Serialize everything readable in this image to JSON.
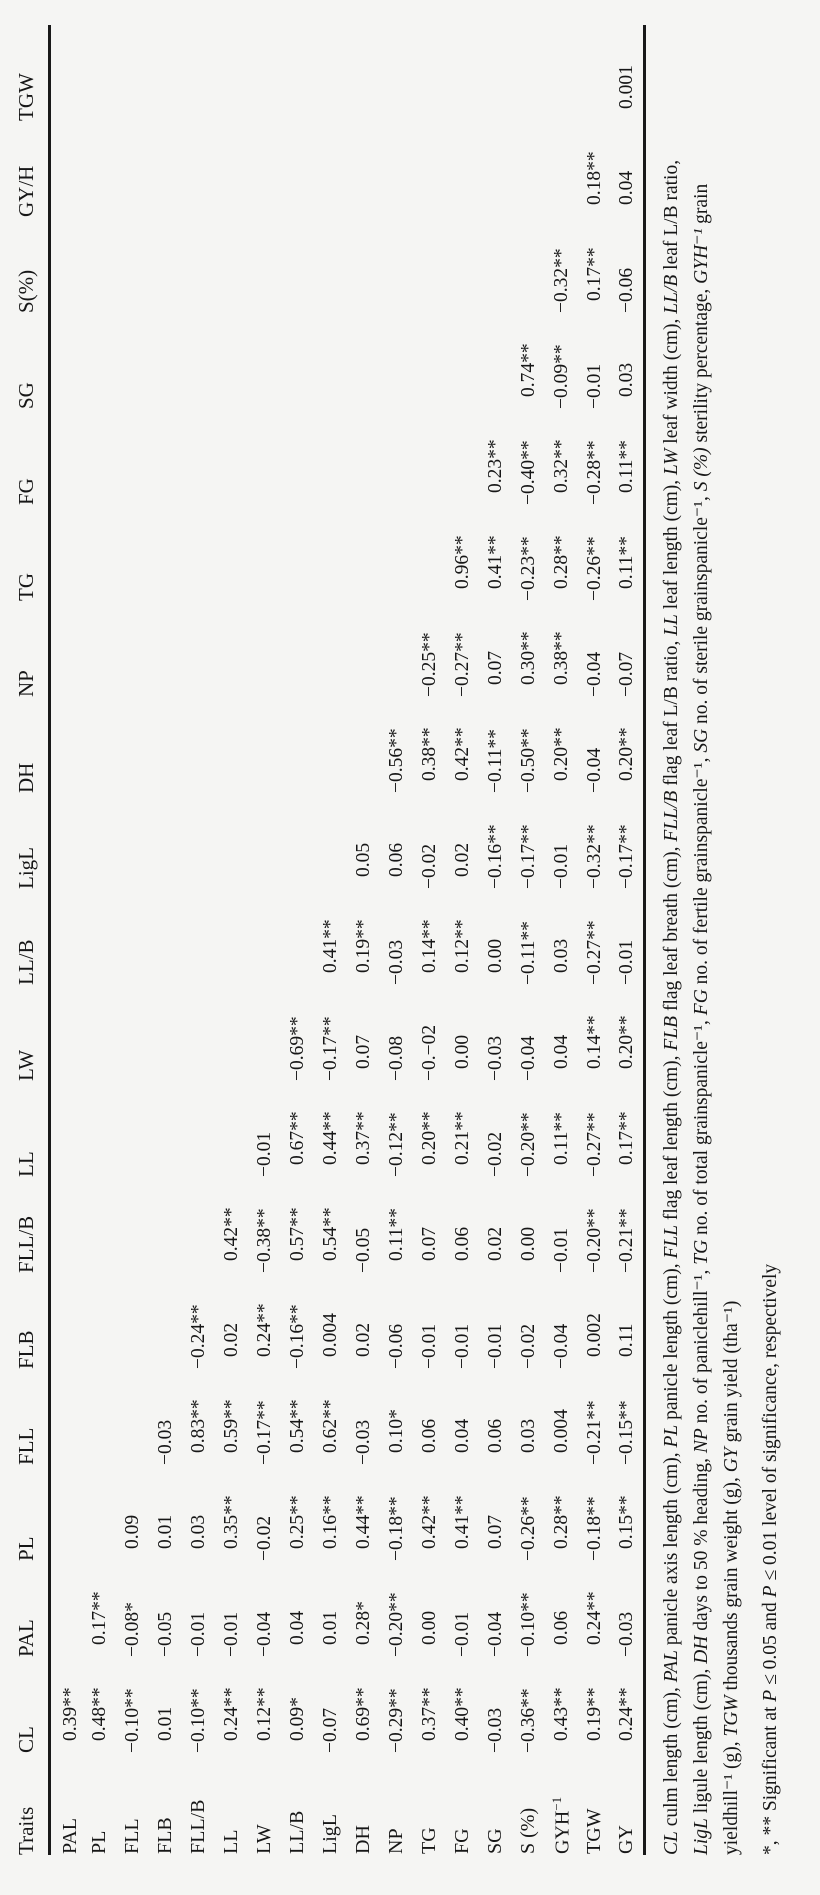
{
  "table": {
    "header": [
      "Traits",
      "CL",
      "PAL",
      "PL",
      "FLL",
      "FLB",
      "FLL/B",
      "LL",
      "LW",
      "LL/B",
      "LigL",
      "DH",
      "NP",
      "TG",
      "FG",
      "SG",
      "S(%)",
      "GY/H",
      "TGW"
    ],
    "rows": [
      {
        "label": "PAL",
        "values": [
          "0.39**"
        ]
      },
      {
        "label": "PL",
        "values": [
          "0.48**",
          "0.17**"
        ]
      },
      {
        "label": "FLL",
        "values": [
          "−0.10**",
          "−0.08*",
          "0.09"
        ]
      },
      {
        "label": "FLB",
        "values": [
          "0.01",
          "−0.05",
          "0.01",
          "−0.03"
        ]
      },
      {
        "label": "FLL/B",
        "values": [
          "−0.10**",
          "−0.01",
          "0.03",
          "0.83**",
          "−0.24**"
        ]
      },
      {
        "label": "LL",
        "values": [
          "0.24**",
          "−0.01",
          "0.35**",
          "0.59**",
          "0.02",
          "0.42**"
        ]
      },
      {
        "label": "LW",
        "values": [
          "0.12**",
          "−0.04",
          "−0.02",
          "−0.17**",
          "0.24**",
          "−0.38**",
          "−0.01"
        ]
      },
      {
        "label": "LL/B",
        "values": [
          "0.09*",
          "0.04",
          "0.25**",
          "0.54**",
          "−0.16**",
          "0.57**",
          "0.67**",
          "−0.69**"
        ]
      },
      {
        "label": "LigL",
        "values": [
          "−0.07",
          "0.01",
          "0.16**",
          "0.62**",
          "0.004",
          "0.54**",
          "0.44**",
          "−0.17**",
          "0.41**"
        ]
      },
      {
        "label": "DH",
        "values": [
          "0.69**",
          "0.28*",
          "0.44**",
          "−0.03",
          "0.02",
          "−0.05",
          "0.37**",
          "0.07",
          "0.19**",
          "0.05"
        ]
      },
      {
        "label": "NP",
        "values": [
          "−0.29**",
          "−0.20**",
          "−0.18**",
          "0.10*",
          "−0.06",
          "0.11**",
          "−0.12**",
          "−0.08",
          "−0.03",
          "0.06",
          "−0.56**"
        ]
      },
      {
        "label": "TG",
        "values": [
          "0.37**",
          "0.00",
          "0.42**",
          "0.06",
          "−0.01",
          "0.07",
          "0.20**",
          "−0.−02",
          "0.14**",
          "−0.02",
          "0.38**",
          "−0.25**"
        ]
      },
      {
        "label": "FG",
        "values": [
          "0.40**",
          "−0.01",
          "0.41**",
          "0.04",
          "−0.01",
          "0.06",
          "0.21**",
          "0.00",
          "0.12**",
          "0.02",
          "0.42**",
          "−0.27**",
          "0.96**"
        ]
      },
      {
        "label": "SG",
        "values": [
          "−0.03",
          "−0.04",
          "0.07",
          "0.06",
          "−0.01",
          "0.02",
          "−0.02",
          "−0.03",
          "0.00",
          "−0.16**",
          "−0.11**",
          "0.07",
          "0.41**",
          "0.23**"
        ]
      },
      {
        "label": "S (%)",
        "values": [
          "−0.36**",
          "−0.10**",
          "−0.26**",
          "0.03",
          "−0.02",
          "0.00",
          "−0.20**",
          "−0.04",
          "−0.11**",
          "−0.17**",
          "−0.50**",
          "0.30**",
          "−0.23**",
          "−0.40**",
          "0.74**"
        ]
      },
      {
        "label": "GYH",
        "label_sup": "−1",
        "values": [
          "0.43**",
          "0.06",
          "0.28**",
          "0.004",
          "−0.04",
          "−0.01",
          "0.11**",
          "0.04",
          "0.03",
          "−0.01",
          "0.20**",
          "0.38**",
          "0.28**",
          "0.32**",
          "−0.09**",
          "−0.32**"
        ]
      },
      {
        "label": "TGW",
        "values": [
          "0.19**",
          "0.24**",
          "−0.18**",
          "−0.21**",
          "0.002",
          "−0.20**",
          "−0.27**",
          "0.14**",
          "−0.27**",
          "−0.32**",
          "−0.04",
          "−0.04",
          "−0.26**",
          "−0.28**",
          "−0.01",
          "0.17**",
          "0.18**"
        ]
      },
      {
        "label": "GY",
        "values": [
          "0.24**",
          "−0.03",
          "0.15**",
          "−0.15**",
          "0.11",
          "−0.21**",
          "0.17**",
          "0.20**",
          "−0.01",
          "−0.17**",
          "0.20**",
          "−0.07",
          "0.11**",
          "0.11**",
          "0.03",
          "−0.06",
          "0.04",
          "0.001"
        ]
      }
    ]
  },
  "footnotes": [
    [
      {
        "t": "CL",
        "i": 1
      },
      {
        "t": " culm length (cm), "
      },
      {
        "t": "PAL",
        "i": 1
      },
      {
        "t": " panicle axis length (cm), "
      },
      {
        "t": "PL",
        "i": 1
      },
      {
        "t": " panicle length (cm), "
      },
      {
        "t": "FLL",
        "i": 1
      },
      {
        "t": " flag leaf length (cm), "
      },
      {
        "t": "FLB",
        "i": 1
      },
      {
        "t": " flag leaf breath (cm), "
      },
      {
        "t": "FLL/B",
        "i": 1
      },
      {
        "t": " flag leaf L/B ratio, "
      },
      {
        "t": "LL",
        "i": 1
      },
      {
        "t": " leaf length (cm), "
      },
      {
        "t": "LW",
        "i": 1
      },
      {
        "t": " leaf width (cm), "
      },
      {
        "t": "LL/B",
        "i": 1
      },
      {
        "t": " leaf L/B ratio,"
      }
    ],
    [
      {
        "t": "LigL",
        "i": 1
      },
      {
        "t": " ligule length (cm), "
      },
      {
        "t": "DH",
        "i": 1
      },
      {
        "t": " days to 50 % heading, "
      },
      {
        "t": "NP",
        "i": 1
      },
      {
        "t": " no. of paniclehill⁻¹, "
      },
      {
        "t": "TG",
        "i": 1
      },
      {
        "t": " no. of total grainspanicle⁻¹, "
      },
      {
        "t": "FG",
        "i": 1
      },
      {
        "t": " no. of fertile grainspanicle⁻¹, "
      },
      {
        "t": "SG",
        "i": 1
      },
      {
        "t": " no. of sterile grainspanicle⁻¹, "
      },
      {
        "t": "S (%)",
        "i": 1
      },
      {
        "t": " sterility percentage, "
      },
      {
        "t": "GYH⁻¹",
        "i": 1
      },
      {
        "t": " grain"
      }
    ],
    [
      {
        "t": "yieldhill⁻¹ (g), "
      },
      {
        "t": "TGW",
        "i": 1
      },
      {
        "t": " thousands grain weight (g), "
      },
      {
        "t": "GY",
        "i": 1
      },
      {
        "t": " grain yield (tha⁻¹)"
      }
    ],
    [
      {
        "t": "*, ** Significant at "
      },
      {
        "t": "P",
        "i": 1
      },
      {
        "t": " ≤ 0.05 and "
      },
      {
        "t": "P",
        "i": 1
      },
      {
        "t": " ≤ 0.01 level of significance, respectively"
      }
    ]
  ]
}
